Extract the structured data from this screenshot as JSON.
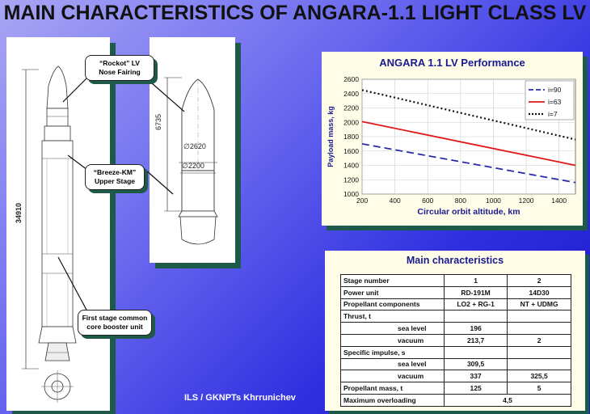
{
  "title": "MAIN CHARACTERISTICS OF ANGARA-1.1 LIGHT CLASS LV",
  "drawing": {
    "overall_height": "34910",
    "fairing_height": "6735",
    "diameter_upper": "∅2620",
    "diameter_lower": "∅2200"
  },
  "callouts": {
    "fairing": [
      "“Rockot” LV",
      "Nose Fairing"
    ],
    "breeze": [
      "“Breeze-KM”",
      "Upper Stage"
    ],
    "first_stage": [
      "First stage common",
      "core booster unit"
    ]
  },
  "chart_data": {
    "type": "line",
    "title": "ANGARA 1.1 LV Performance",
    "xlabel": "Circular orbit altitude, km",
    "ylabel": "Payload mass, kg",
    "xlim": [
      200,
      1500
    ],
    "ylim": [
      1000,
      2600
    ],
    "xticks": [
      200,
      400,
      600,
      800,
      1000,
      1200,
      1400
    ],
    "yticks": [
      1000,
      1200,
      1400,
      1600,
      1800,
      2000,
      2200,
      2400,
      2600
    ],
    "grid": true,
    "legend_position": "top-right",
    "series": [
      {
        "name": "i=90",
        "style": "dashed",
        "color": "#2a2aa8",
        "x": [
          200,
          1500
        ],
        "y": [
          1700,
          1160
        ]
      },
      {
        "name": "i=63",
        "style": "solid",
        "color": "#e01818",
        "x": [
          200,
          1500
        ],
        "y": [
          2010,
          1400
        ]
      },
      {
        "name": "i=7",
        "style": "dotted",
        "color": "#111111",
        "x": [
          200,
          1500
        ],
        "y": [
          2450,
          1760
        ]
      }
    ]
  },
  "table": {
    "title": "Main characteristics",
    "rows": [
      {
        "label": "Stage number",
        "s1": "1",
        "s2": "2"
      },
      {
        "label": "Power unit",
        "s1": "RD-191M",
        "s2": "14D30"
      },
      {
        "label": "Propellant components",
        "s1": "LO2 + RG-1",
        "s2": "NT + UDMG"
      },
      {
        "label": "Thrust, t",
        "s1": "",
        "s2": ""
      },
      {
        "label": "sea level",
        "s1": "196",
        "s2": "",
        "indent": true
      },
      {
        "label": "vacuum",
        "s1": "213,7",
        "s2": "2",
        "indent": true
      },
      {
        "label": "Specific impulse, s",
        "s1": "",
        "s2": ""
      },
      {
        "label": "sea level",
        "s1": "309,5",
        "s2": "",
        "indent": true
      },
      {
        "label": "vacuum",
        "s1": "337",
        "s2": "325,5",
        "indent": true
      },
      {
        "label": "Propellant mass, t",
        "s1": "125",
        "s2": "5"
      },
      {
        "label": "Maximum overloading",
        "merged": "4,5"
      }
    ]
  },
  "footer": "ILS / GKNPTs Khrrunichev"
}
